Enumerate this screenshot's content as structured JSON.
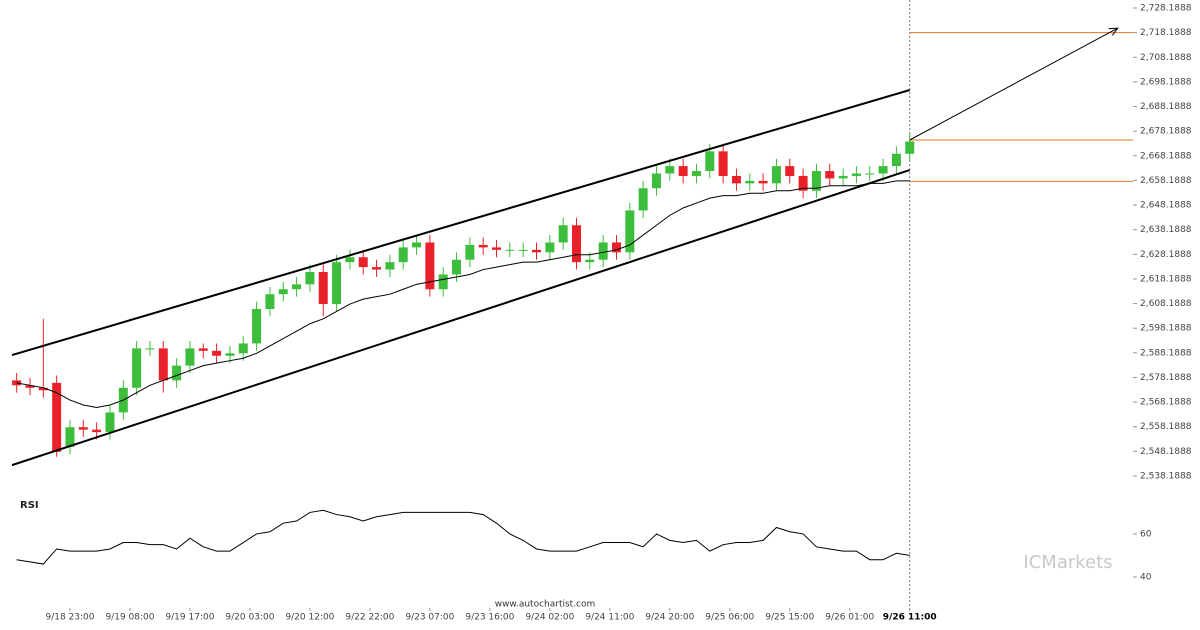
{
  "chart_data": [
    {
      "type": "candlestick",
      "x": [
        1,
        3,
        5,
        7,
        9,
        11,
        13,
        15,
        17,
        19,
        21,
        23,
        25,
        27,
        29,
        31,
        33,
        35,
        37,
        39,
        41,
        43,
        45,
        47,
        49,
        51,
        53,
        55,
        57,
        59,
        61,
        63,
        65,
        67,
        69,
        71,
        73,
        75,
        77,
        79,
        81,
        83,
        85,
        87,
        89,
        91,
        93,
        95,
        97,
        99,
        101,
        103,
        105,
        107,
        109,
        111,
        113,
        115,
        117,
        119,
        121,
        123,
        125,
        127,
        129,
        131,
        133,
        135
      ],
      "open": [
        2577,
        2575,
        2574,
        2576,
        2550,
        2558,
        2557,
        2556,
        2564,
        2574,
        2590,
        2590,
        2577,
        2583,
        2590,
        2589,
        2587,
        2588,
        2592,
        2606,
        2612,
        2614,
        2616,
        2621,
        2608,
        2625,
        2627,
        2623,
        2622,
        2625,
        2631,
        2633,
        2614,
        2620,
        2626,
        2632,
        2631,
        2630,
        2630,
        2630,
        2629,
        2633,
        2640,
        2625,
        2626,
        2633,
        2629,
        2646,
        2655,
        2661,
        2664,
        2660,
        2662,
        2670,
        2660,
        2657,
        2658,
        2657,
        2664,
        2660,
        2654,
        2662,
        2659,
        2660,
        2661,
        2661,
        2664,
        2669
      ],
      "high": [
        2580,
        2578,
        2602,
        2579,
        2561,
        2561,
        2560,
        2567,
        2577,
        2593,
        2593,
        2593,
        2586,
        2593,
        2592,
        2592,
        2591,
        2595,
        2609,
        2615,
        2617,
        2619,
        2624,
        2624,
        2628,
        2630,
        2630,
        2626,
        2628,
        2634,
        2636,
        2636,
        2623,
        2629,
        2635,
        2635,
        2634,
        2633,
        2633,
        2633,
        2636,
        2643,
        2643,
        2629,
        2636,
        2636,
        2649,
        2658,
        2664,
        2667,
        2667,
        2665,
        2673,
        2673,
        2663,
        2661,
        2661,
        2667,
        2667,
        2663,
        2665,
        2665,
        2663,
        2664,
        2664,
        2667,
        2672,
        2677
      ],
      "low": [
        2572,
        2571,
        2570,
        2546,
        2547,
        2554,
        2553,
        2553,
        2561,
        2571,
        2587,
        2572,
        2574,
        2580,
        2586,
        2584,
        2584,
        2585,
        2589,
        2603,
        2609,
        2611,
        2613,
        2603,
        2605,
        2622,
        2620,
        2619,
        2619,
        2622,
        2628,
        2611,
        2611,
        2617,
        2623,
        2628,
        2627,
        2627,
        2627,
        2626,
        2626,
        2630,
        2622,
        2622,
        2623,
        2626,
        2626,
        2643,
        2652,
        2658,
        2657,
        2657,
        2659,
        2657,
        2654,
        2654,
        2654,
        2654,
        2657,
        2651,
        2651,
        2656,
        2656,
        2657,
        2658,
        2658,
        2661,
        2666
      ],
      "close": [
        2575,
        2574,
        2573,
        2548,
        2558,
        2557,
        2556,
        2564,
        2574,
        2590,
        2590,
        2577,
        2583,
        2590,
        2589,
        2587,
        2588,
        2592,
        2606,
        2612,
        2614,
        2616,
        2621,
        2608,
        2625,
        2627,
        2623,
        2622,
        2625,
        2631,
        2633,
        2614,
        2620,
        2626,
        2632,
        2631,
        2630,
        2630,
        2630,
        2629,
        2633,
        2640,
        2625,
        2626,
        2633,
        2629,
        2646,
        2655,
        2661,
        2664,
        2660,
        2662,
        2670,
        2660,
        2657,
        2658,
        2657,
        2664,
        2660,
        2654,
        2662,
        2659,
        2660,
        2661,
        2661,
        2664,
        2669,
        2674
      ],
      "up_color": "#3cbe3c",
      "down_color": "#e8212a",
      "series": [
        {
          "color": "#000000",
          "values": [
            2576,
            2575,
            2574,
            2572,
            2569,
            2567,
            2566,
            2567,
            2569,
            2572,
            2575,
            2577,
            2579,
            2581,
            2583,
            2584,
            2585,
            2586,
            2588,
            2591,
            2594,
            2597,
            2600,
            2602,
            2605,
            2608,
            2610,
            2611,
            2612,
            2614,
            2616,
            2617,
            2618,
            2619,
            2620,
            2622,
            2623,
            2624,
            2625,
            2625,
            2626,
            2627,
            2628,
            2628,
            2629,
            2630,
            2632,
            2636,
            2640,
            2644,
            2647,
            2649,
            2651,
            2652,
            2652,
            2653,
            2653,
            2654,
            2654,
            2655,
            2655,
            2656,
            2656,
            2656,
            2657,
            2657,
            2658,
            2658
          ]
        }
      ],
      "channel": {
        "color": "#000000",
        "upper": {
          "x": [
            0.3,
            135
          ],
          "y": [
            2587.3,
            2694.9
          ]
        },
        "lower": {
          "x": [
            0.3,
            135
          ],
          "y": [
            2542.6,
            2662.4
          ]
        }
      },
      "forecast": {
        "color": "#000000",
        "x": [
          135,
          166.2
        ],
        "y": [
          2674.6,
          2720
        ]
      },
      "levels": {
        "color": "#e8752a",
        "values": [
          2718.2,
          2674.6,
          2657.8
        ]
      },
      "current_x": 135,
      "xlim": [
        -1.5,
        168.5
      ],
      "ylim": [
        2532.5,
        2731.44
      ],
      "yticks": [
        {
          "value": 2538.1888,
          "label": "2,538.1888"
        },
        {
          "value": 2548.1888,
          "label": "2,548.1888"
        },
        {
          "value": 2558.1888,
          "label": "2,558.1888"
        },
        {
          "value": 2568.1888,
          "label": "2,568.1888"
        },
        {
          "value": 2578.1888,
          "label": "2,578.1888"
        },
        {
          "value": 2588.1888,
          "label": "2,588.1888"
        },
        {
          "value": 2598.1888,
          "label": "2,598.1888"
        },
        {
          "value": 2608.1888,
          "label": "2,608.1888"
        },
        {
          "value": 2618.1888,
          "label": "2,618.1888"
        },
        {
          "value": 2628.1888,
          "label": "2,628.1888"
        },
        {
          "value": 2638.1888,
          "label": "2,638.1888"
        },
        {
          "value": 2648.1888,
          "label": "2,648.1888"
        },
        {
          "value": 2658.1888,
          "label": "2,658.1888"
        },
        {
          "value": 2668.1888,
          "label": "2,668.1888"
        },
        {
          "value": 2678.1888,
          "label": "2,678.1888"
        },
        {
          "value": 2688.1888,
          "label": "2,688.1888"
        },
        {
          "value": 2698.1888,
          "label": "2,698.1888"
        },
        {
          "value": 2708.1888,
          "label": "2,708.1888"
        },
        {
          "value": 2718.1888,
          "label": "2,718.1888"
        },
        {
          "value": 2728.1888,
          "label": "2,728.1888"
        }
      ]
    },
    {
      "type": "line",
      "title": "RSI",
      "x": [
        1,
        3,
        5,
        7,
        9,
        11,
        13,
        15,
        17,
        19,
        21,
        23,
        25,
        27,
        29,
        31,
        33,
        35,
        37,
        39,
        41,
        43,
        45,
        47,
        49,
        51,
        53,
        55,
        57,
        59,
        61,
        63,
        65,
        67,
        69,
        71,
        73,
        75,
        77,
        79,
        81,
        83,
        85,
        87,
        89,
        91,
        93,
        95,
        97,
        99,
        101,
        103,
        105,
        107,
        109,
        111,
        113,
        115,
        117,
        119,
        121,
        123,
        125,
        127,
        129,
        131,
        133,
        135
      ],
      "series": [
        {
          "color": "#000000",
          "values": [
            48,
            47,
            46,
            53,
            52,
            52,
            52,
            53,
            56,
            56,
            55,
            55,
            53,
            58,
            54,
            52,
            52,
            56,
            60,
            61,
            65,
            66,
            70,
            71,
            69,
            68,
            66,
            68,
            69,
            70,
            70,
            70,
            70,
            70,
            70,
            69,
            65,
            60,
            57,
            53,
            52,
            52,
            52,
            54,
            56,
            56,
            56,
            54,
            60,
            57,
            56,
            57,
            52,
            55,
            56,
            56,
            57,
            63,
            61,
            60,
            54,
            53,
            52,
            52,
            48,
            48,
            51,
            50
          ]
        }
      ],
      "xlim": [
        -1.5,
        168.5
      ],
      "ylim": [
        31.6,
        78.1
      ],
      "yticks": [
        40,
        60
      ],
      "xticks": [
        {
          "value": 9,
          "label": "9/18 23:00"
        },
        {
          "value": 18,
          "label": "9/19 08:00"
        },
        {
          "value": 27,
          "label": "9/19 17:00"
        },
        {
          "value": 36,
          "label": "9/20 03:00"
        },
        {
          "value": 45,
          "label": "9/20 12:00"
        },
        {
          "value": 54,
          "label": "9/22 22:00"
        },
        {
          "value": 63,
          "label": "9/23 07:00"
        },
        {
          "value": 72,
          "label": "9/23 16:00"
        },
        {
          "value": 81,
          "label": "9/24 02:00"
        },
        {
          "value": 90,
          "label": "9/24 11:00"
        },
        {
          "value": 99,
          "label": "9/24 20:00"
        },
        {
          "value": 108,
          "label": "9/25 06:00"
        },
        {
          "value": 117,
          "label": "9/25 15:00"
        },
        {
          "value": 126,
          "label": "9/26 01:00"
        },
        {
          "value": 135,
          "label": "9/26 11:00"
        }
      ],
      "source": "www.autochartist.com",
      "watermark": "ICMarkets"
    }
  ]
}
